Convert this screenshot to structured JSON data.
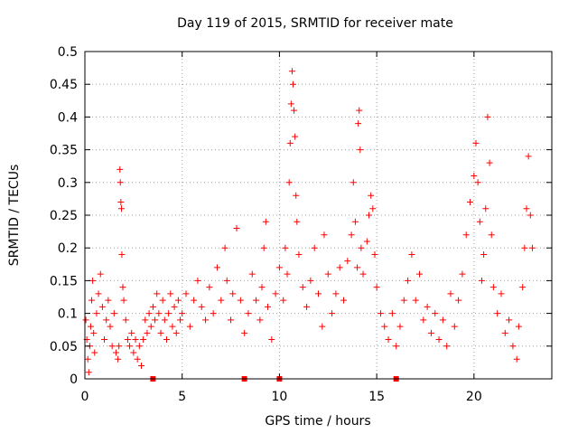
{
  "chart_data": {
    "type": "scatter",
    "title": "Day 119 of 2015, SRMTID for receiver mate",
    "xlabel": "GPS time / hours",
    "ylabel": "SRMTID / TECUs",
    "xlim": [
      0,
      24
    ],
    "ylim": [
      0,
      0.5
    ],
    "xticks": [
      0,
      5,
      10,
      15,
      20
    ],
    "xtick_labels": [
      "0",
      "5",
      "10",
      "15",
      "20"
    ],
    "yticks": [
      0,
      0.05,
      0.1,
      0.15,
      0.2,
      0.25,
      0.3,
      0.35,
      0.4,
      0.45,
      0.5
    ],
    "ytick_labels": [
      "0",
      "0.05",
      "0.1",
      "0.15",
      "0.2",
      "0.25",
      "0.3",
      "0.35",
      "0.4",
      "0.45",
      "0.5"
    ],
    "grid": true,
    "marker": "+",
    "series": [
      {
        "name": "SRMTID",
        "color": "#ff0000",
        "points": [
          [
            0.05,
            0.09
          ],
          [
            0.1,
            0.06
          ],
          [
            0.15,
            0.03
          ],
          [
            0.2,
            0.01
          ],
          [
            0.25,
            0.05
          ],
          [
            0.3,
            0.08
          ],
          [
            0.35,
            0.12
          ],
          [
            0.4,
            0.15
          ],
          [
            0.45,
            0.07
          ],
          [
            0.5,
            0.04
          ],
          [
            0.6,
            0.1
          ],
          [
            0.7,
            0.13
          ],
          [
            0.8,
            0.16
          ],
          [
            0.9,
            0.11
          ],
          [
            1.0,
            0.06
          ],
          [
            1.1,
            0.09
          ],
          [
            1.2,
            0.12
          ],
          [
            1.3,
            0.08
          ],
          [
            1.4,
            0.05
          ],
          [
            1.5,
            0.1
          ],
          [
            1.6,
            0.04
          ],
          [
            1.7,
            0.03
          ],
          [
            1.75,
            0.05
          ],
          [
            1.8,
            0.32
          ],
          [
            1.82,
            0.3
          ],
          [
            1.85,
            0.27
          ],
          [
            1.88,
            0.26
          ],
          [
            1.9,
            0.19
          ],
          [
            1.95,
            0.14
          ],
          [
            2.0,
            0.12
          ],
          [
            2.1,
            0.09
          ],
          [
            2.2,
            0.06
          ],
          [
            2.3,
            0.05
          ],
          [
            2.4,
            0.07
          ],
          [
            2.5,
            0.04
          ],
          [
            2.6,
            0.06
          ],
          [
            2.7,
            0.03
          ],
          [
            2.8,
            0.05
          ],
          [
            2.9,
            0.02
          ],
          [
            3.0,
            0.06
          ],
          [
            3.1,
            0.09
          ],
          [
            3.2,
            0.07
          ],
          [
            3.3,
            0.1
          ],
          [
            3.4,
            0.08
          ],
          [
            3.5,
            0.11
          ],
          [
            3.6,
            0.09
          ],
          [
            3.7,
            0.13
          ],
          [
            3.8,
            0.1
          ],
          [
            3.9,
            0.07
          ],
          [
            4.0,
            0.12
          ],
          [
            4.1,
            0.09
          ],
          [
            4.2,
            0.06
          ],
          [
            4.3,
            0.1
          ],
          [
            4.4,
            0.13
          ],
          [
            4.5,
            0.08
          ],
          [
            4.6,
            0.11
          ],
          [
            4.7,
            0.07
          ],
          [
            4.8,
            0.12
          ],
          [
            4.9,
            0.09
          ],
          [
            5.0,
            0.1
          ],
          [
            5.2,
            0.13
          ],
          [
            5.4,
            0.08
          ],
          [
            5.6,
            0.12
          ],
          [
            5.8,
            0.15
          ],
          [
            6.0,
            0.11
          ],
          [
            6.2,
            0.09
          ],
          [
            6.4,
            0.14
          ],
          [
            6.6,
            0.1
          ],
          [
            6.8,
            0.17
          ],
          [
            7.0,
            0.12
          ],
          [
            7.2,
            0.2
          ],
          [
            7.3,
            0.15
          ],
          [
            7.5,
            0.09
          ],
          [
            7.6,
            0.13
          ],
          [
            7.8,
            0.23
          ],
          [
            8.0,
            0.12
          ],
          [
            8.2,
            0.07
          ],
          [
            8.4,
            0.1
          ],
          [
            8.6,
            0.16
          ],
          [
            8.8,
            0.12
          ],
          [
            9.0,
            0.09
          ],
          [
            9.1,
            0.14
          ],
          [
            9.2,
            0.2
          ],
          [
            9.3,
            0.24
          ],
          [
            9.4,
            0.11
          ],
          [
            9.6,
            0.06
          ],
          [
            9.8,
            0.13
          ],
          [
            10.0,
            0.17
          ],
          [
            10.2,
            0.12
          ],
          [
            10.3,
            0.2
          ],
          [
            10.4,
            0.16
          ],
          [
            10.5,
            0.3
          ],
          [
            10.55,
            0.36
          ],
          [
            10.6,
            0.42
          ],
          [
            10.65,
            0.47
          ],
          [
            10.7,
            0.45
          ],
          [
            10.75,
            0.41
          ],
          [
            10.8,
            0.37
          ],
          [
            10.85,
            0.28
          ],
          [
            10.9,
            0.24
          ],
          [
            11.0,
            0.19
          ],
          [
            11.2,
            0.14
          ],
          [
            11.4,
            0.11
          ],
          [
            11.6,
            0.15
          ],
          [
            11.8,
            0.2
          ],
          [
            12.0,
            0.13
          ],
          [
            12.2,
            0.08
          ],
          [
            12.3,
            0.22
          ],
          [
            12.5,
            0.16
          ],
          [
            12.7,
            0.1
          ],
          [
            12.9,
            0.13
          ],
          [
            13.1,
            0.17
          ],
          [
            13.3,
            0.12
          ],
          [
            13.5,
            0.18
          ],
          [
            13.7,
            0.22
          ],
          [
            13.8,
            0.3
          ],
          [
            13.9,
            0.24
          ],
          [
            14.0,
            0.17
          ],
          [
            14.05,
            0.39
          ],
          [
            14.1,
            0.41
          ],
          [
            14.15,
            0.35
          ],
          [
            14.2,
            0.2
          ],
          [
            14.3,
            0.16
          ],
          [
            14.5,
            0.21
          ],
          [
            14.6,
            0.25
          ],
          [
            14.7,
            0.28
          ],
          [
            14.8,
            0.26
          ],
          [
            14.9,
            0.19
          ],
          [
            15.0,
            0.14
          ],
          [
            15.2,
            0.1
          ],
          [
            15.4,
            0.08
          ],
          [
            15.6,
            0.06
          ],
          [
            15.8,
            0.1
          ],
          [
            16.0,
            0.05
          ],
          [
            16.2,
            0.08
          ],
          [
            16.4,
            0.12
          ],
          [
            16.6,
            0.15
          ],
          [
            16.8,
            0.19
          ],
          [
            17.0,
            0.12
          ],
          [
            17.2,
            0.16
          ],
          [
            17.4,
            0.09
          ],
          [
            17.6,
            0.11
          ],
          [
            17.8,
            0.07
          ],
          [
            18.0,
            0.1
          ],
          [
            18.2,
            0.06
          ],
          [
            18.4,
            0.09
          ],
          [
            18.6,
            0.05
          ],
          [
            18.8,
            0.13
          ],
          [
            19.0,
            0.08
          ],
          [
            19.2,
            0.12
          ],
          [
            19.4,
            0.16
          ],
          [
            19.6,
            0.22
          ],
          [
            19.8,
            0.27
          ],
          [
            20.0,
            0.31
          ],
          [
            20.1,
            0.36
          ],
          [
            20.2,
            0.3
          ],
          [
            20.3,
            0.24
          ],
          [
            20.4,
            0.15
          ],
          [
            20.5,
            0.19
          ],
          [
            20.6,
            0.26
          ],
          [
            20.7,
            0.4
          ],
          [
            20.8,
            0.33
          ],
          [
            20.9,
            0.22
          ],
          [
            21.0,
            0.14
          ],
          [
            21.2,
            0.1
          ],
          [
            21.4,
            0.13
          ],
          [
            21.6,
            0.07
          ],
          [
            21.8,
            0.09
          ],
          [
            22.0,
            0.05
          ],
          [
            22.2,
            0.03
          ],
          [
            22.3,
            0.08
          ],
          [
            22.5,
            0.14
          ],
          [
            22.6,
            0.2
          ],
          [
            22.7,
            0.26
          ],
          [
            22.8,
            0.34
          ],
          [
            22.9,
            0.25
          ],
          [
            23.0,
            0.2
          ]
        ]
      }
    ],
    "zero_markers_x": [
      3.5,
      8.2,
      10.0,
      16.0
    ]
  }
}
